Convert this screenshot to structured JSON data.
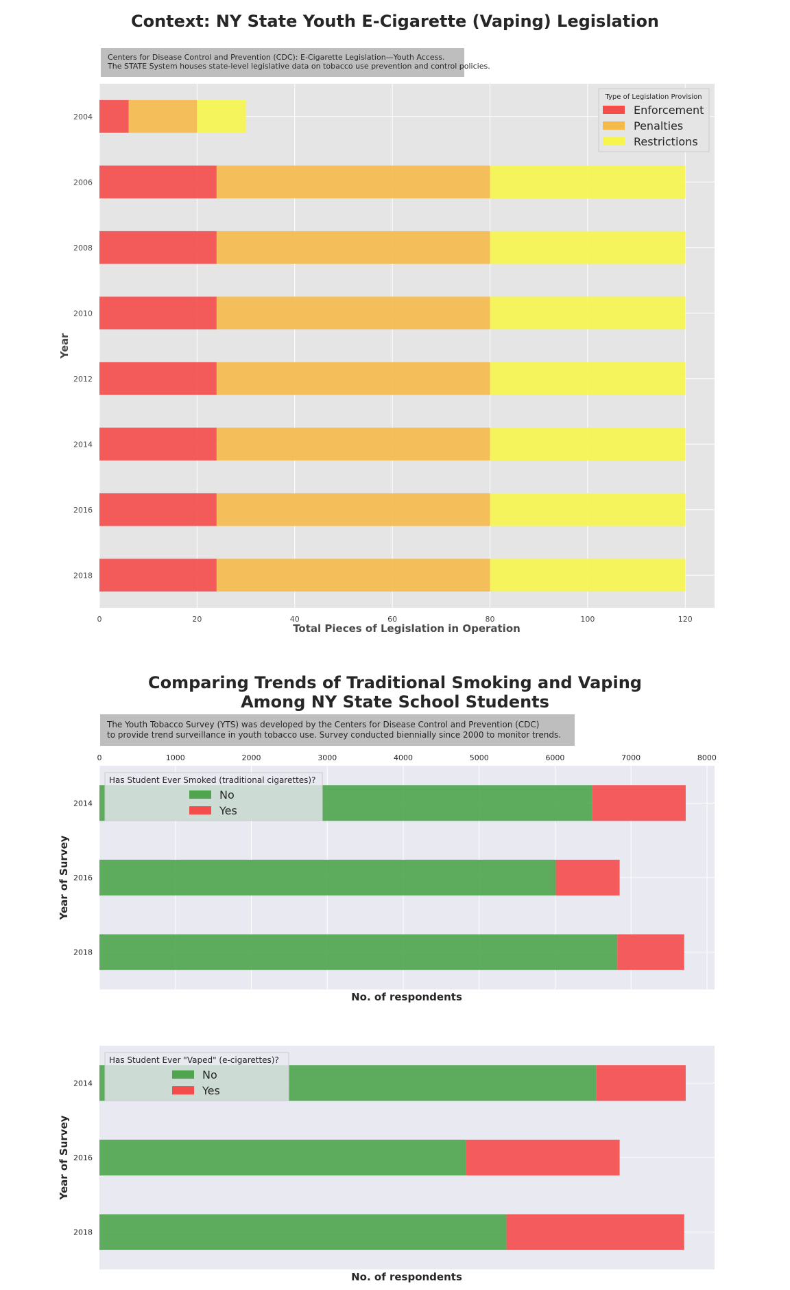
{
  "figure1": {
    "title": "Context: NY State  Youth E-Cigarette (Vaping) Legislation",
    "note_lines": [
      "Centers for Disease Control and Prevention (CDC): E-Cigarette Legislation—Youth Access.",
      "The STATE System houses state-level legislative data on tobacco use prevention and control policies."
    ],
    "legend_title": "Type of Legislation Provision",
    "legend_position": "top-right",
    "colors": {
      "Enforcement": "#f44b4b",
      "Penalties": "#f5b94a",
      "Restrictions": "#f6f54e",
      "background": "#e5e5e5"
    }
  },
  "figure2": {
    "title_lines": [
      "Comparing Trends of Traditional Smoking and Vaping",
      "Among NY State School Students"
    ],
    "note_lines": [
      "The Youth Tobacco Survey (YTS) was developed by the Centers for Disease Control and Prevention (CDC)",
      "to provide trend surveillance in youth tobacco use.  Survey conducted biennially since 2000 to monitor trends."
    ],
    "colors": {
      "No": "#4ea54e",
      "Yes": "#f44b4b",
      "background": "#e8e9f1"
    }
  },
  "chart_data": [
    {
      "type": "bar",
      "orientation": "horizontal",
      "stacked": true,
      "title": "Context: NY State  Youth E-Cigarette (Vaping) Legislation",
      "xlabel": "Total Pieces of Legislation in Operation",
      "ylabel": "Year",
      "xlim": [
        0,
        126
      ],
      "xticks": [
        0,
        20,
        40,
        60,
        80,
        100,
        120
      ],
      "grid": true,
      "legend": {
        "title": "Type of Legislation Provision",
        "position": "top-right"
      },
      "categories": [
        "2004",
        "2006",
        "2008",
        "2010",
        "2012",
        "2014",
        "2016",
        "2018"
      ],
      "series": [
        {
          "name": "Enforcement",
          "values": [
            6,
            24,
            24,
            24,
            24,
            24,
            24,
            24
          ]
        },
        {
          "name": "Penalties",
          "values": [
            14,
            56,
            56,
            56,
            56,
            56,
            56,
            56
          ]
        },
        {
          "name": "Restrictions",
          "values": [
            10,
            40,
            40,
            40,
            40,
            40,
            40,
            40
          ]
        }
      ]
    },
    {
      "type": "bar",
      "orientation": "horizontal",
      "stacked": true,
      "xlabel": "No. of respondents",
      "ylabel": "Year of Survey",
      "xlim": [
        0,
        8100
      ],
      "xticks": [
        0,
        1000,
        2000,
        3000,
        4000,
        5000,
        6000,
        7000,
        8000
      ],
      "xticks_position": "top",
      "grid": true,
      "legend": {
        "title": "Has Student Ever Smoked (traditional cigarettes)?",
        "position": "top-left"
      },
      "categories": [
        "2014",
        "2016",
        "2018"
      ],
      "series": [
        {
          "name": "No",
          "values": [
            6490,
            6010,
            6820
          ]
        },
        {
          "name": "Yes",
          "values": [
            1230,
            840,
            880
          ]
        }
      ]
    },
    {
      "type": "bar",
      "orientation": "horizontal",
      "stacked": true,
      "xlabel": "No. of respondents",
      "ylabel": "Year of Survey",
      "xlim": [
        0,
        8100
      ],
      "grid": true,
      "legend": {
        "title": "Has Student Ever \"Vaped\" (e-cigarettes)?",
        "position": "top-left"
      },
      "categories": [
        "2014",
        "2016",
        "2018"
      ],
      "series": [
        {
          "name": "No",
          "values": [
            6540,
            4830,
            5360
          ]
        },
        {
          "name": "Yes",
          "values": [
            1180,
            2020,
            2340
          ]
        }
      ]
    }
  ]
}
